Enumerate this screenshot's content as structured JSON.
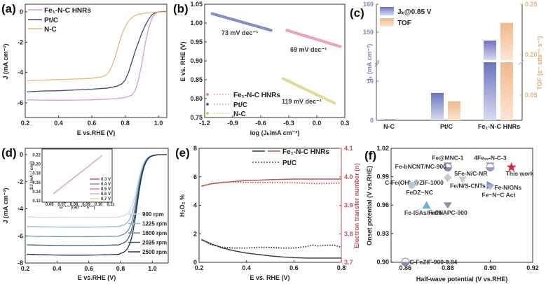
{
  "chart_data": [
    {
      "id": "a",
      "panel_label": "(a)",
      "type": "line",
      "xlabel": "E vs.RHE (V)",
      "ylabel": "J (mA cm⁻²)",
      "xlim": [
        0.2,
        1.05
      ],
      "ylim": [
        -7,
        0.5
      ],
      "xticks": [
        "0.2",
        "0.4",
        "0.6",
        "0.8",
        "1.0"
      ],
      "yticks": [
        "0",
        "-2",
        "-4",
        "-6"
      ],
      "legend_position": "top-left",
      "series": [
        {
          "name": "Fe₁-N-C HNRs",
          "color": "#d89bd0",
          "x": [
            0.21,
            0.3,
            0.4,
            0.5,
            0.6,
            0.7,
            0.75,
            0.8,
            0.84,
            0.86,
            0.88,
            0.9,
            0.92,
            0.94,
            0.96,
            0.98,
            1.0,
            1.02,
            1.05
          ],
          "y": [
            -5.8,
            -5.82,
            -5.83,
            -5.82,
            -5.8,
            -5.75,
            -5.72,
            -5.65,
            -5.5,
            -5.2,
            -4.5,
            -3.4,
            -2.1,
            -1.1,
            -0.45,
            -0.12,
            0.0,
            0.03,
            0.03
          ]
        },
        {
          "name": "Pt/C",
          "color": "#3c4a6e",
          "x": [
            0.21,
            0.25,
            0.3,
            0.4,
            0.5,
            0.6,
            0.7,
            0.75,
            0.78,
            0.8,
            0.82,
            0.84,
            0.86,
            0.88,
            0.9,
            0.92,
            0.94,
            0.96,
            0.98,
            1.0,
            1.02,
            1.05
          ],
          "y": [
            -5.28,
            -5.25,
            -5.22,
            -5.2,
            -5.15,
            -5.1,
            -5.02,
            -4.9,
            -4.75,
            -4.5,
            -4.0,
            -3.3,
            -2.6,
            -2.0,
            -1.4,
            -0.9,
            -0.5,
            -0.2,
            -0.05,
            0.0,
            0.02,
            0.03
          ]
        },
        {
          "name": "N-C",
          "color": "#e8b77c",
          "x": [
            0.21,
            0.3,
            0.4,
            0.5,
            0.6,
            0.65,
            0.68,
            0.7,
            0.72,
            0.74,
            0.76,
            0.78,
            0.8,
            0.82,
            0.85,
            0.88,
            0.92,
            0.96,
            1.0,
            1.05
          ],
          "y": [
            -4.55,
            -4.5,
            -4.47,
            -4.43,
            -4.38,
            -4.3,
            -4.2,
            -4.0,
            -3.6,
            -3.0,
            -2.2,
            -1.5,
            -1.0,
            -0.6,
            -0.3,
            -0.15,
            -0.08,
            -0.04,
            -0.01,
            0.0
          ]
        }
      ]
    },
    {
      "id": "b",
      "panel_label": "(b)",
      "type": "line",
      "xlabel": "log (Jₖ/mA cm⁻²)",
      "ylabel": "E vs. RHE (V)",
      "xlim": [
        -1.2,
        0.3
      ],
      "ylim": [
        0.75,
        1.05
      ],
      "xticks": [
        "-1.2",
        "-0.9",
        "-0.6",
        "-0.3",
        "0.0",
        "0.3"
      ],
      "yticks": [
        "0.75",
        "0.80",
        "0.85",
        "0.90",
        "0.95",
        "1.00",
        "1.05"
      ],
      "legend_position": "bottom-left",
      "series": [
        {
          "name": "Fe₁-N-C HNRs",
          "color": "#e07aa8",
          "x": [
            -0.32,
            0.25
          ],
          "y": [
            0.981,
            0.938
          ],
          "slope_label": "69 mV dec⁻¹"
        },
        {
          "name": "Pt/C",
          "color": "#4a5ea8",
          "x": [
            -1.12,
            -0.49
          ],
          "y": [
            1.025,
            0.981
          ],
          "slope_label": "73 mV dec⁻¹"
        },
        {
          "name": "N-C",
          "color": "#d8c86a",
          "x": [
            -0.36,
            0.19
          ],
          "y": [
            0.853,
            0.788
          ],
          "slope_label": "119 mV dec⁻¹"
        }
      ]
    },
    {
      "id": "c",
      "panel_label": "(c)",
      "type": "bar",
      "categories": [
        "N-C",
        "Pt/C",
        "Fe₁-N-C HNRs"
      ],
      "ylabel_left": "Jₖ (mA cm⁻²)",
      "ylabel_right": "TOF (e⁻ site⁻¹ s⁻¹)",
      "left_axis_break": true,
      "yticks_left": [
        "0",
        "10",
        "150",
        "160"
      ],
      "yticks_right": [
        "0.05",
        "0.20",
        "0.25"
      ],
      "legend_position": "top-left",
      "series": [
        {
          "name": "Jₖ@0.85 V",
          "color": "#6b74c0",
          "values": [
            0.3,
            7.0,
            147
          ]
        },
        {
          "name": "TOF",
          "color": "#f0b88c",
          "values": [
            null,
            0.039,
            0.23
          ]
        }
      ]
    },
    {
      "id": "d",
      "panel_label": "(d)",
      "type": "line",
      "xlabel": "E vs.RHE (V)",
      "ylabel": "J (mA cm⁻²)",
      "xlim": [
        0.2,
        1.1
      ],
      "ylim": [
        -8,
        0.5
      ],
      "xticks": [
        "0.2",
        "0.4",
        "0.6",
        "0.8",
        "1.0"
      ],
      "yticks": [
        "0",
        "-2",
        "-4",
        "-6",
        "-8"
      ],
      "legend_position": "bottom-right",
      "series": [
        {
          "name": "900  rpm",
          "color": "#c4e0ea",
          "plateau": -4.6
        },
        {
          "name": "1225 rpm",
          "color": "#8fb8cf",
          "plateau": -5.3
        },
        {
          "name": "1600 rpm",
          "color": "#6d8ca8",
          "plateau": -6.0
        },
        {
          "name": "2025 rpm",
          "color": "#3f5a7a",
          "plateau": -6.65
        },
        {
          "name": "2500 rpm",
          "color": "#1e2f4d",
          "plateau": -7.35
        }
      ],
      "inset": {
        "xlabel": "ω⁻¹ᐟ² (rad⁻¹ᐟ² s¹ᐟ²)",
        "ylabel": "1/J (mA⁻¹ cm²)",
        "xlim": [
          0.055,
          0.11
        ],
        "ylim": [
          0.12,
          0.23
        ],
        "xticks": [
          "0.06",
          "0.07",
          "0.08",
          "0.09",
          "0.10",
          "0.11"
        ],
        "yticks": [
          "0.12",
          "0.14",
          "0.16",
          "0.18",
          "0.20",
          "0.22"
        ],
        "series": [
          {
            "name": "0.3 V",
            "color": "#b0446a",
            "x": [
              0.063,
              0.103
            ],
            "y": [
              0.135,
              0.219
            ]
          },
          {
            "name": "0.4 V",
            "color": "#6f7cab",
            "x": [
              0.063,
              0.103
            ],
            "y": [
              0.135,
              0.219
            ]
          },
          {
            "name": "0.5 V",
            "color": "#c56ea0",
            "x": [
              0.063,
              0.103
            ],
            "y": [
              0.135,
              0.219
            ]
          },
          {
            "name": "0.6 V",
            "color": "#d9a0b0",
            "x": [
              0.063,
              0.103
            ],
            "y": [
              0.135,
              0.219
            ]
          },
          {
            "name": "0.7 V",
            "color": "#f0c8a0",
            "x": [
              0.063,
              0.103
            ],
            "y": [
              0.135,
              0.219
            ]
          }
        ]
      }
    },
    {
      "id": "e",
      "panel_label": "(e)",
      "type": "line",
      "xlabel": "E vs. RHE (V)",
      "ylabel_left": "H₂O₂ %",
      "ylabel_right": "Electron transfer number (n)",
      "xlim": [
        0.2,
        0.8
      ],
      "ylim_left": [
        0,
        8
      ],
      "ylim_right": [
        3.7,
        4.1
      ],
      "xticks": [
        "0.2",
        "0.4",
        "0.6",
        "0.8"
      ],
      "yticks_left": [
        "0",
        "2",
        "4",
        "6",
        "8"
      ],
      "yticks_right": [
        "3.7",
        "3.8",
        "3.9",
        "4.0",
        "4.1"
      ],
      "legend_position": "top-right",
      "series": [
        {
          "name": "Fe₁-N-C HNRs H₂O₂",
          "axis": "left",
          "color": "#333333",
          "dash": false,
          "x": [
            0.21,
            0.25,
            0.3,
            0.35,
            0.4,
            0.45,
            0.5,
            0.55,
            0.6,
            0.65,
            0.7,
            0.75,
            0.8
          ],
          "y": [
            1.6,
            1.3,
            1.0,
            0.8,
            0.65,
            0.55,
            0.45,
            0.38,
            0.33,
            0.3,
            0.3,
            0.3,
            0.3
          ]
        },
        {
          "name": "Pt/C H₂O₂",
          "axis": "left",
          "color": "#333333",
          "dash": true,
          "x": [
            0.21,
            0.25,
            0.3,
            0.35,
            0.4,
            0.45,
            0.5,
            0.55,
            0.6,
            0.65,
            0.68,
            0.7,
            0.74,
            0.77,
            0.8
          ],
          "y": [
            1.6,
            1.25,
            1.05,
            1.0,
            1.0,
            1.05,
            1.05,
            1.0,
            1.0,
            1.1,
            1.2,
            1.15,
            1.2,
            1.2,
            1.05
          ]
        },
        {
          "name": "Fe₁-N-C HNRs n",
          "axis": "right",
          "color": "#c0505a",
          "dash": false,
          "x": [
            0.21,
            0.25,
            0.3,
            0.35,
            0.4,
            0.45,
            0.5,
            0.6,
            0.7,
            0.8
          ],
          "y": [
            3.967,
            3.975,
            3.98,
            3.984,
            3.987,
            3.988,
            3.99,
            3.992,
            3.992,
            3.992
          ]
        },
        {
          "name": "Pt/C n",
          "axis": "right",
          "color": "#c0505a",
          "dash": true,
          "x": [
            0.21,
            0.25,
            0.3,
            0.35,
            0.4,
            0.5,
            0.6,
            0.7,
            0.75,
            0.8
          ],
          "y": [
            3.967,
            3.976,
            3.981,
            3.982,
            3.98,
            3.98,
            3.979,
            3.976,
            3.977,
            3.978
          ]
        }
      ],
      "legend": [
        {
          "label": "Fe₁-N-C HNRs",
          "style": "solid"
        },
        {
          "label": "Pt/C",
          "style": "dotted"
        }
      ]
    },
    {
      "id": "f",
      "panel_label": "(f)",
      "type": "scatter",
      "xlabel": "Half-wave potential (V vs.RHE)",
      "ylabel": "Onset potential (V vs.RHE)",
      "xlim": [
        0.85,
        0.92
      ],
      "ylim": [
        0.89,
        1.02
      ],
      "xticks": [
        "0.86",
        "0.88",
        "0.90",
        "0.92"
      ],
      "yticks": [
        "0.90",
        "0.93",
        "0.96",
        "0.99",
        "1.02"
      ],
      "points": [
        {
          "label": "Fe@MNC-1",
          "x": 0.88,
          "y": 1.002,
          "marker": "triangle-down",
          "color": "#7a7ea0"
        },
        {
          "label": "Fe-bNCNT/NC-900",
          "x": 0.88,
          "y": 1.0,
          "marker": "circle-half",
          "color": "#8a8ab0"
        },
        {
          "label": "4Feₓₓ-N-C-3",
          "x": 0.9,
          "y": 1.002,
          "marker": "triangle-down",
          "color": "#8a8ab0"
        },
        {
          "label": "5Fe-N/C-NR",
          "x": 0.9,
          "y": 1.0,
          "marker": "circle-half",
          "color": "#9a9ac0"
        },
        {
          "label": "This work",
          "x": 0.91,
          "y": 1.0,
          "marker": "star",
          "color": "#d8283c"
        },
        {
          "label": "C-Fe(OH)₂@ZIF-1000",
          "x": 0.88,
          "y": 0.989,
          "marker": "diamond",
          "color": "#c8c8d0"
        },
        {
          "label": "Fe/N/S-CNTs",
          "x": 0.887,
          "y": 0.987,
          "marker": "triangle-down",
          "color": "#c0c0c8"
        },
        {
          "label": "Fe-N/GNs",
          "x": 0.9,
          "y": 0.981,
          "marker": "triangle-right",
          "color": "#6a72b8"
        },
        {
          "label": "Fe−N−C Act",
          "x": 0.9,
          "y": 0.979,
          "marker": "triangle-down",
          "color": "#a8b0d8"
        },
        {
          "label": "FeDZ−NC",
          "x": 0.863,
          "y": 0.981,
          "marker": "circle",
          "color": "#b8c8d8"
        },
        {
          "label": "Fe-ISAs/H-CN",
          "x": 0.87,
          "y": 0.96,
          "marker": "triangle-up",
          "color": "#5ea0c8"
        },
        {
          "label": "Fe/N/APC-900",
          "x": 0.88,
          "y": 0.96,
          "marker": "triangle-down",
          "color": "#7a7ea0"
        },
        {
          "label": "C-FeZIF-900-0.84",
          "x": 0.86,
          "y": 0.9,
          "marker": "circle-half",
          "color": "#8a8ab0"
        }
      ]
    }
  ]
}
